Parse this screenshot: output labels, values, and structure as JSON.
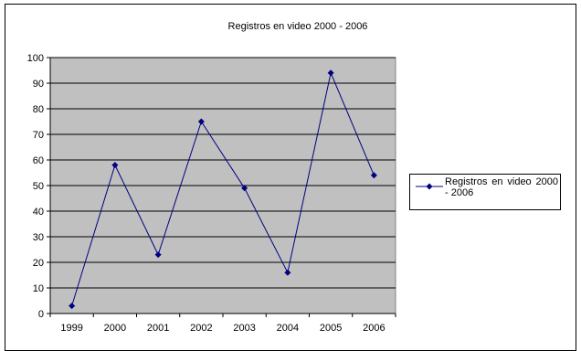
{
  "chart_data": {
    "type": "line",
    "title": "Registros en video 2000 - 2006",
    "xlabel": "",
    "ylabel": "",
    "categories": [
      "1999",
      "2000",
      "2001",
      "2002",
      "2003",
      "2004",
      "2005",
      "2006"
    ],
    "series": [
      {
        "name": "Registros en video 2000 - 2006",
        "values": [
          3,
          58,
          23,
          75,
          49,
          16,
          94,
          54
        ],
        "color": "#000080",
        "marker": "diamond"
      }
    ],
    "ylim": [
      0,
      100
    ],
    "yticks": [
      0,
      10,
      20,
      30,
      40,
      50,
      60,
      70,
      80,
      90,
      100
    ],
    "grid": true,
    "plot_background": "#C0C0C0",
    "legend_position": "right"
  }
}
